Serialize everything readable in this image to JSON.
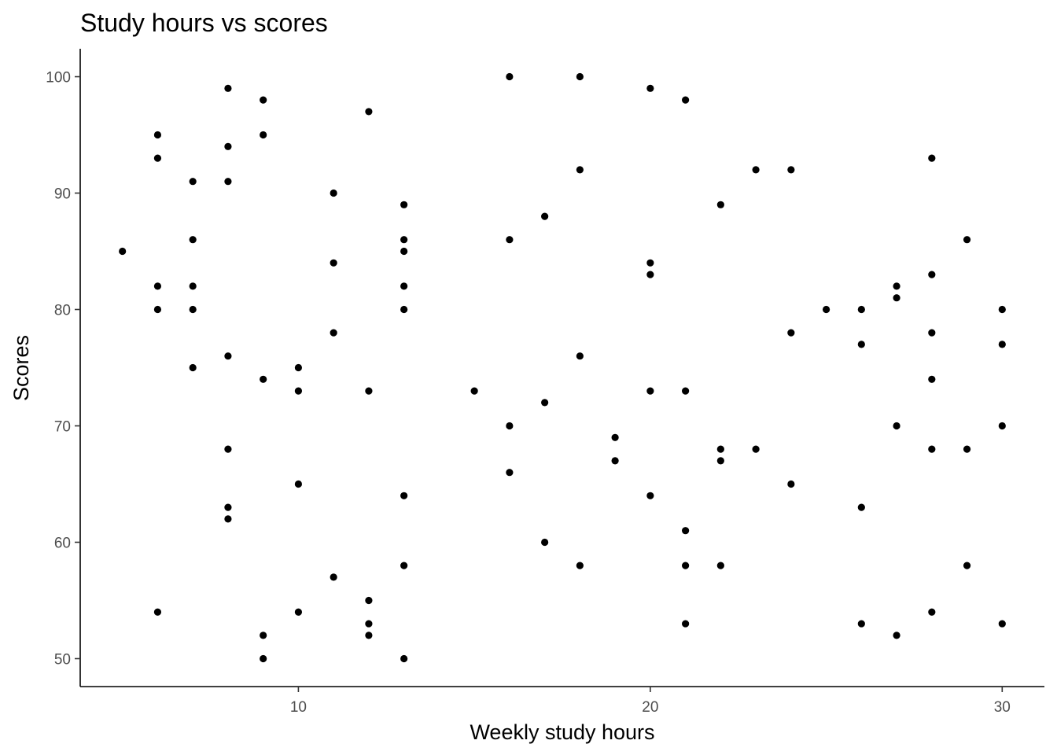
{
  "chart_data": {
    "type": "scatter",
    "title": "Study hours vs scores",
    "xlabel": "Weekly study hours",
    "ylabel": "Scores",
    "xlim": [
      3.8,
      31.2
    ],
    "ylim": [
      47.6,
      102.4
    ],
    "xticks": [
      10,
      20,
      30
    ],
    "yticks": [
      50,
      60,
      70,
      80,
      90,
      100
    ],
    "grid": false,
    "legend": "none",
    "point_color": "#000000",
    "points": [
      [
        5,
        85
      ],
      [
        6,
        95
      ],
      [
        6,
        93
      ],
      [
        6,
        82
      ],
      [
        6,
        80
      ],
      [
        6,
        54
      ],
      [
        7,
        91
      ],
      [
        7,
        86
      ],
      [
        7,
        82
      ],
      [
        7,
        80
      ],
      [
        7,
        75
      ],
      [
        8,
        99
      ],
      [
        8,
        94
      ],
      [
        8,
        91
      ],
      [
        8,
        76
      ],
      [
        8,
        68
      ],
      [
        8,
        63
      ],
      [
        8,
        62
      ],
      [
        9,
        98
      ],
      [
        9,
        95
      ],
      [
        9,
        74
      ],
      [
        9,
        52
      ],
      [
        9,
        50
      ],
      [
        10,
        75
      ],
      [
        10,
        73
      ],
      [
        10,
        65
      ],
      [
        10,
        54
      ],
      [
        11,
        90
      ],
      [
        11,
        84
      ],
      [
        11,
        78
      ],
      [
        11,
        57
      ],
      [
        12,
        97
      ],
      [
        12,
        73
      ],
      [
        12,
        55
      ],
      [
        12,
        53
      ],
      [
        12,
        52
      ],
      [
        13,
        89
      ],
      [
        13,
        86
      ],
      [
        13,
        85
      ],
      [
        13,
        82
      ],
      [
        13,
        80
      ],
      [
        13,
        64
      ],
      [
        13,
        58
      ],
      [
        13,
        50
      ],
      [
        15,
        73
      ],
      [
        16,
        100
      ],
      [
        16,
        86
      ],
      [
        16,
        70
      ],
      [
        16,
        66
      ],
      [
        17,
        88
      ],
      [
        17,
        72
      ],
      [
        17,
        60
      ],
      [
        18,
        100
      ],
      [
        18,
        92
      ],
      [
        18,
        76
      ],
      [
        18,
        58
      ],
      [
        19,
        69
      ],
      [
        19,
        67
      ],
      [
        20,
        99
      ],
      [
        20,
        84
      ],
      [
        20,
        83
      ],
      [
        20,
        73
      ],
      [
        20,
        64
      ],
      [
        21,
        98
      ],
      [
        21,
        73
      ],
      [
        21,
        61
      ],
      [
        21,
        58
      ],
      [
        21,
        53
      ],
      [
        22,
        89
      ],
      [
        22,
        68
      ],
      [
        22,
        67
      ],
      [
        22,
        58
      ],
      [
        23,
        92
      ],
      [
        23,
        68
      ],
      [
        24,
        92
      ],
      [
        24,
        78
      ],
      [
        24,
        65
      ],
      [
        25,
        80
      ],
      [
        26,
        80
      ],
      [
        26,
        77
      ],
      [
        26,
        63
      ],
      [
        26,
        53
      ],
      [
        27,
        82
      ],
      [
        27,
        81
      ],
      [
        27,
        70
      ],
      [
        27,
        52
      ],
      [
        28,
        93
      ],
      [
        28,
        83
      ],
      [
        28,
        78
      ],
      [
        28,
        74
      ],
      [
        28,
        68
      ],
      [
        28,
        54
      ],
      [
        29,
        86
      ],
      [
        29,
        68
      ],
      [
        29,
        58
      ],
      [
        30,
        80
      ],
      [
        30,
        77
      ],
      [
        30,
        70
      ],
      [
        30,
        53
      ]
    ]
  }
}
